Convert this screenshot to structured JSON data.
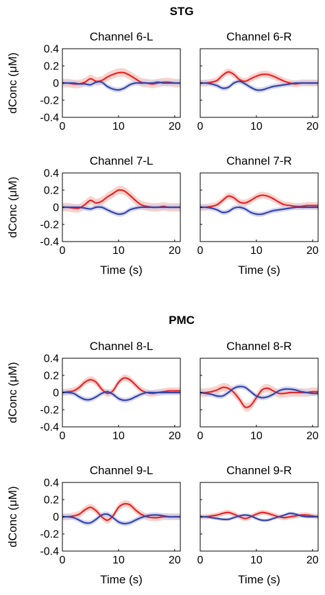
{
  "figure": {
    "sections": [
      {
        "title": "STG"
      },
      {
        "title": "PMC"
      }
    ],
    "colors": {
      "red": "#e8232a",
      "blue": "#3346a8",
      "red_band": "#f5c4bb",
      "blue_band": "#c9cbeb"
    }
  },
  "chart_data": [
    {
      "type": "line",
      "title": "Channel 6-L",
      "section": "STG",
      "xlabel": "",
      "ylabel": "dConc (μM)",
      "xlim": [
        0,
        21
      ],
      "ylim": [
        -0.4,
        0.4
      ],
      "xticks": [
        "0",
        "10",
        "20"
      ],
      "yticks": [
        "-0.4",
        "-0.2",
        "0",
        "0.2",
        "0.4"
      ],
      "x": [
        0,
        1,
        2,
        3,
        4,
        5,
        6,
        7,
        8,
        9,
        10,
        11,
        12,
        13,
        14,
        15,
        16,
        17,
        18,
        19,
        20,
        21
      ],
      "series": [
        {
          "color": "red",
          "values": [
            0,
            0,
            -0.01,
            -0.01,
            0.01,
            0.05,
            0.02,
            0.03,
            0.07,
            0.1,
            0.12,
            0.12,
            0.09,
            0.05,
            0.01,
            0,
            -0.01,
            0,
            0.01,
            0.01,
            0,
            0
          ],
          "band": 0.05
        },
        {
          "color": "blue",
          "values": [
            0,
            0,
            0,
            -0.01,
            -0.01,
            -0.02,
            0.01,
            0.01,
            -0.04,
            -0.07,
            -0.08,
            -0.06,
            -0.02,
            0,
            0,
            0,
            0,
            0.01,
            0,
            0,
            0,
            0
          ],
          "band": 0.03
        }
      ]
    },
    {
      "type": "line",
      "title": "Channel 6-R",
      "section": "STG",
      "xlabel": "",
      "ylabel": "",
      "xlim": [
        0,
        21
      ],
      "ylim": [
        -0.4,
        0.4
      ],
      "xticks": [
        "0",
        "10",
        "20"
      ],
      "yticks": [],
      "x": [
        0,
        1,
        2,
        3,
        4,
        5,
        6,
        7,
        8,
        9,
        10,
        11,
        12,
        13,
        14,
        15,
        16,
        17,
        18,
        19,
        20,
        21
      ],
      "series": [
        {
          "color": "red",
          "values": [
            0,
            0,
            0.01,
            0.03,
            0.09,
            0.13,
            0.1,
            0.04,
            0.02,
            0.05,
            0.08,
            0.1,
            0.1,
            0.08,
            0.05,
            0.02,
            0,
            -0.01,
            0,
            0,
            0,
            0
          ],
          "band": 0.04
        },
        {
          "color": "blue",
          "values": [
            0,
            0,
            -0.01,
            -0.03,
            -0.06,
            -0.05,
            0,
            0.02,
            -0.01,
            -0.05,
            -0.08,
            -0.08,
            -0.06,
            -0.04,
            -0.03,
            -0.02,
            -0.01,
            0,
            0,
            0,
            0,
            0
          ],
          "band": 0.03
        }
      ]
    },
    {
      "type": "line",
      "title": "Channel 7-L",
      "section": "STG",
      "xlabel": "Time (s)",
      "ylabel": "dConc (μM)",
      "xlim": [
        0,
        21
      ],
      "ylim": [
        -0.4,
        0.4
      ],
      "xticks": [
        "0",
        "10",
        "20"
      ],
      "yticks": [
        "-0.4",
        "-0.2",
        "0",
        "0.2",
        "0.4"
      ],
      "x": [
        0,
        1,
        2,
        3,
        4,
        5,
        6,
        7,
        8,
        9,
        10,
        11,
        12,
        13,
        14,
        15,
        16,
        17,
        18,
        19,
        20,
        21
      ],
      "series": [
        {
          "color": "red",
          "values": [
            0,
            0,
            -0.01,
            -0.01,
            0.03,
            0.08,
            0.05,
            0.07,
            0.12,
            0.16,
            0.2,
            0.19,
            0.14,
            0.08,
            0.03,
            0.01,
            0,
            0,
            0.01,
            0,
            0,
            0
          ],
          "band": 0.05
        },
        {
          "color": "blue",
          "values": [
            0,
            0,
            0,
            0,
            -0.01,
            -0.02,
            0,
            0,
            -0.03,
            -0.06,
            -0.08,
            -0.07,
            -0.03,
            -0.01,
            0,
            0,
            0,
            0,
            0,
            0,
            0,
            0
          ],
          "band": 0.03
        }
      ]
    },
    {
      "type": "line",
      "title": "Channel 7-R",
      "section": "STG",
      "xlabel": "Time (s)",
      "ylabel": "",
      "xlim": [
        0,
        21
      ],
      "ylim": [
        -0.4,
        0.4
      ],
      "xticks": [
        "0",
        "10",
        "20"
      ],
      "yticks": [],
      "x": [
        0,
        1,
        2,
        3,
        4,
        5,
        6,
        7,
        8,
        9,
        10,
        11,
        12,
        13,
        14,
        15,
        16,
        17,
        18,
        19,
        20,
        21
      ],
      "series": [
        {
          "color": "red",
          "values": [
            0,
            0,
            0.01,
            0.03,
            0.08,
            0.13,
            0.11,
            0.06,
            0.05,
            0.08,
            0.12,
            0.14,
            0.13,
            0.1,
            0.06,
            0.03,
            0.02,
            0.01,
            0.01,
            0.02,
            0.02,
            0.02
          ],
          "band": 0.04
        },
        {
          "color": "blue",
          "values": [
            0,
            0,
            -0.01,
            -0.03,
            -0.06,
            -0.05,
            -0.01,
            0,
            -0.02,
            -0.06,
            -0.08,
            -0.08,
            -0.06,
            -0.04,
            -0.03,
            -0.02,
            -0.01,
            0,
            0,
            0,
            0,
            0
          ],
          "band": 0.03
        }
      ]
    },
    {
      "type": "line",
      "title": "Channel 8-L",
      "section": "PMC",
      "xlabel": "",
      "ylabel": "dConc (μM)",
      "xlim": [
        0,
        21
      ],
      "ylim": [
        -0.4,
        0.4
      ],
      "xticks": [
        "0",
        "10",
        "20"
      ],
      "yticks": [
        "-0.4",
        "-0.2",
        "0",
        "0.2",
        "0.4"
      ],
      "x": [
        0,
        1,
        2,
        3,
        4,
        5,
        6,
        7,
        8,
        9,
        10,
        11,
        12,
        13,
        14,
        15,
        16,
        17,
        18,
        19,
        20,
        21
      ],
      "series": [
        {
          "color": "red",
          "values": [
            0,
            0.01,
            0.02,
            0.06,
            0.12,
            0.15,
            0.12,
            0.04,
            -0.01,
            0.02,
            0.12,
            0.17,
            0.15,
            0.09,
            0.03,
            0,
            -0.01,
            0,
            0.01,
            0.02,
            0.02,
            0.02
          ],
          "band": 0.04
        },
        {
          "color": "blue",
          "values": [
            0,
            0,
            -0.01,
            -0.05,
            -0.08,
            -0.08,
            -0.05,
            -0.01,
            0.01,
            -0.02,
            -0.07,
            -0.09,
            -0.08,
            -0.05,
            -0.02,
            0,
            0,
            0,
            0,
            0,
            0,
            0
          ],
          "band": 0.03
        }
      ]
    },
    {
      "type": "line",
      "title": "Channel 8-R",
      "section": "PMC",
      "xlabel": "",
      "ylabel": "",
      "xlim": [
        0,
        21
      ],
      "ylim": [
        -0.4,
        0.4
      ],
      "xticks": [
        "0",
        "10",
        "20"
      ],
      "yticks": [],
      "x": [
        0,
        1,
        2,
        3,
        4,
        5,
        6,
        7,
        8,
        9,
        10,
        11,
        12,
        13,
        14,
        15,
        16,
        17,
        18,
        19,
        20,
        21
      ],
      "series": [
        {
          "color": "red",
          "values": [
            0,
            0,
            0.01,
            0.03,
            0.06,
            0.05,
            0,
            -0.08,
            -0.17,
            -0.15,
            -0.06,
            0.03,
            0.05,
            0.02,
            -0.01,
            -0.01,
            0,
            0,
            0,
            0,
            0.01,
            0.01
          ],
          "band": 0.05
        },
        {
          "color": "blue",
          "values": [
            0,
            -0.01,
            -0.02,
            -0.04,
            -0.04,
            0,
            0.05,
            0.07,
            0.06,
            0.01,
            -0.04,
            -0.06,
            -0.05,
            -0.02,
            0.02,
            0.04,
            0.04,
            0.03,
            0.01,
            0,
            -0.01,
            -0.01
          ],
          "band": 0.03
        }
      ]
    },
    {
      "type": "line",
      "title": "Channel 9-L",
      "section": "PMC",
      "xlabel": "Time (s)",
      "ylabel": "dConc (μM)",
      "xlim": [
        0,
        21
      ],
      "ylim": [
        -0.4,
        0.4
      ],
      "xticks": [
        "0",
        "10",
        "20"
      ],
      "yticks": [
        "-0.4",
        "-0.2",
        "0",
        "0.2",
        "0.4"
      ],
      "x": [
        0,
        1,
        2,
        3,
        4,
        5,
        6,
        7,
        8,
        9,
        10,
        11,
        12,
        13,
        14,
        15,
        16,
        17,
        18,
        19,
        20,
        21
      ],
      "series": [
        {
          "color": "red",
          "values": [
            0,
            0,
            0.01,
            0.03,
            0.08,
            0.11,
            0.07,
            0,
            -0.04,
            0.01,
            0.11,
            0.15,
            0.14,
            0.08,
            0.03,
            0,
            -0.01,
            -0.01,
            0,
            0,
            0,
            0
          ],
          "band": 0.04
        },
        {
          "color": "blue",
          "values": [
            0,
            0,
            -0.01,
            -0.04,
            -0.07,
            -0.07,
            -0.03,
            0.02,
            0.03,
            -0.01,
            -0.06,
            -0.08,
            -0.07,
            -0.04,
            -0.01,
            0.01,
            0.02,
            0.02,
            0.01,
            0,
            0,
            0
          ],
          "band": 0.03
        }
      ]
    },
    {
      "type": "line",
      "title": "Channel 9-R",
      "section": "PMC",
      "xlabel": "Time (s)",
      "ylabel": "",
      "xlim": [
        0,
        21
      ],
      "ylim": [
        -0.4,
        0.4
      ],
      "xticks": [
        "0",
        "10",
        "20"
      ],
      "yticks": [],
      "x": [
        0,
        1,
        2,
        3,
        4,
        5,
        6,
        7,
        8,
        9,
        10,
        11,
        12,
        13,
        14,
        15,
        16,
        17,
        18,
        19,
        20,
        21
      ],
      "series": [
        {
          "color": "red",
          "values": [
            0,
            0,
            0.01,
            0.02,
            0.04,
            0.05,
            0.03,
            0,
            -0.02,
            0,
            0.03,
            0.05,
            0.04,
            0.02,
            0,
            -0.01,
            0,
            0.01,
            0.02,
            0.02,
            0.01,
            0
          ],
          "band": 0.03
        },
        {
          "color": "blue",
          "values": [
            0,
            0,
            -0.01,
            -0.02,
            -0.03,
            -0.03,
            -0.01,
            0.01,
            0.02,
            0.01,
            -0.02,
            -0.04,
            -0.04,
            -0.02,
            0,
            0.02,
            0.04,
            0.03,
            0.01,
            0,
            0,
            0
          ],
          "band": 0.02
        }
      ]
    }
  ]
}
